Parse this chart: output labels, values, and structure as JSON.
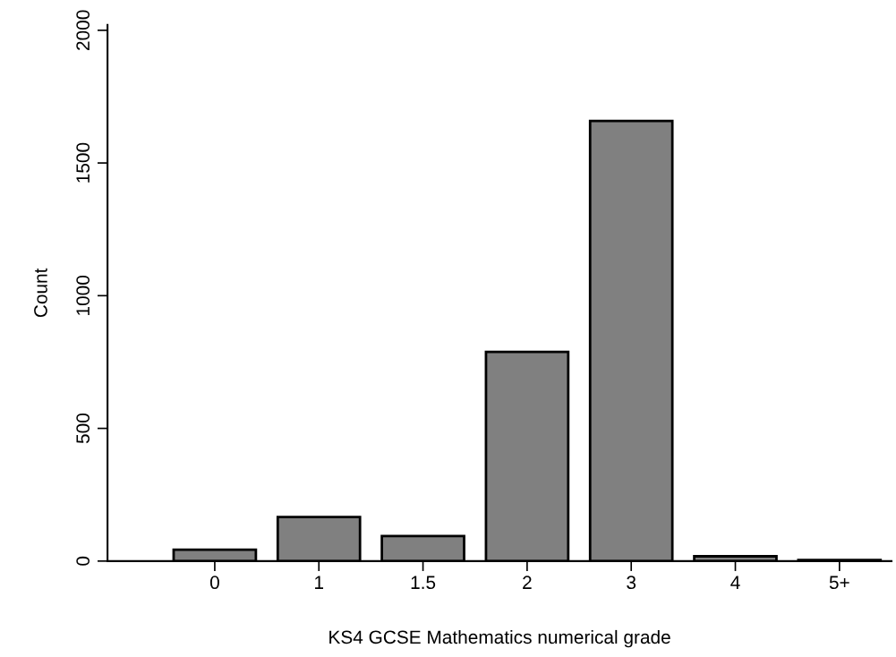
{
  "chart_data": {
    "type": "bar",
    "xlabel": "KS4 GCSE Mathematics numerical grade",
    "ylabel": "Count",
    "categories": [
      "0",
      "1",
      "1.5",
      "2",
      "3",
      "4",
      "5+"
    ],
    "values": [
      43,
      166,
      94,
      788,
      1658,
      18,
      4
    ],
    "color": "#808080",
    "ylim": [
      0,
      2020
    ],
    "yticks": [
      0,
      500,
      1000,
      1500,
      2000
    ],
    "grid": false
  }
}
